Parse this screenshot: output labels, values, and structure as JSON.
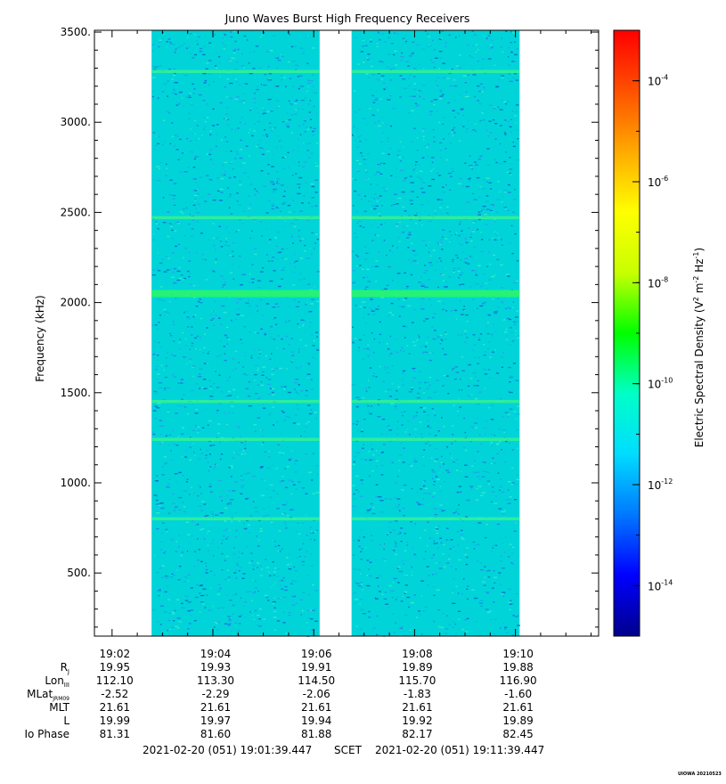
{
  "chart_data": {
    "type": "heatmap",
    "title": "Juno Waves Burst High Frequency Receivers",
    "ylabel": "Frequency (kHz)",
    "colorbar_label": "Electric Spectral Density (V² m⁻² Hz⁻¹)",
    "ylim": [
      150,
      3510
    ],
    "y_ticks": [
      500,
      1000,
      1500,
      2000,
      2500,
      3000,
      3500
    ],
    "y_tick_labels": [
      "500.",
      "1000.",
      "1500.",
      "2000.",
      "2500.",
      "3000.",
      "3500."
    ],
    "x_range_minutes": [
      "19:01:39",
      "19:11:39"
    ],
    "x_tick_labels": [
      "19:02",
      "19:04",
      "19:06",
      "19:08",
      "19:10"
    ],
    "data_coverage": [
      {
        "start": "19:02:47",
        "end": "19:06:07"
      },
      {
        "start": "19:06:45",
        "end": "19:10:05"
      }
    ],
    "colorbar": {
      "scale": "log",
      "range": [
        "1e-15",
        "1e-3"
      ],
      "tick_base": "10",
      "tick_exponents": [
        "-4",
        "-6",
        "-8",
        "-10",
        "-12",
        "-14"
      ],
      "colors": [
        "#00008b",
        "#0000ff",
        "#0078ff",
        "#00dcff",
        "#00ffc8",
        "#00ff00",
        "#c8ff00",
        "#ffff00",
        "#ffaa00",
        "#ff5000",
        "#ff0000"
      ]
    },
    "emission_lines_khz": [
      3280,
      2470,
      2050,
      1450,
      1240,
      800
    ],
    "background_color": "#00d4d8",
    "ephemeris": {
      "row_labels": [
        "Rj",
        "LonIII",
        "MLatJRM09",
        "MLT",
        "L",
        "Io Phase"
      ],
      "columns": [
        {
          "time": "19:02",
          "values": [
            "19.95",
            "112.10",
            "-2.52",
            "21.61",
            "19.99",
            "81.31"
          ]
        },
        {
          "time": "19:04",
          "values": [
            "19.93",
            "113.30",
            "-2.29",
            "21.61",
            "19.97",
            "81.60"
          ]
        },
        {
          "time": "19:06",
          "values": [
            "19.91",
            "114.50",
            "-2.06",
            "21.61",
            "19.94",
            "81.88"
          ]
        },
        {
          "time": "19:08",
          "values": [
            "19.89",
            "115.70",
            "-1.83",
            "21.61",
            "19.92",
            "82.17"
          ]
        },
        {
          "time": "19:10",
          "values": [
            "19.88",
            "116.90",
            "-1.60",
            "21.61",
            "19.89",
            "82.45"
          ]
        }
      ]
    }
  },
  "labels": {
    "rj_main": "R",
    "rj_sub": "J",
    "lon_main": "Lon",
    "lon_sub": "III",
    "mlat_main": "MLat",
    "mlat_sub": "JRM09",
    "mlt": "MLT",
    "l": "L",
    "io_phase": "Io Phase"
  },
  "footer": {
    "start": "2021-02-20 (051) 19:01:39.447",
    "scet": "SCET",
    "end": "2021-02-20 (051) 19:11:39.447"
  },
  "stamp": "UIOWA 20210523"
}
